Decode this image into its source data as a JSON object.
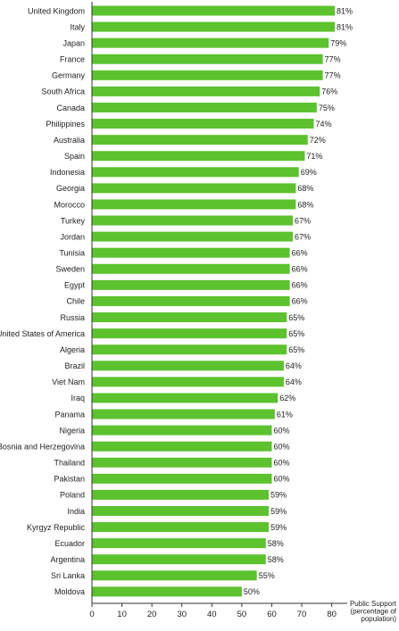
{
  "chart_data": {
    "type": "bar",
    "orientation": "horizontal",
    "categories": [
      "United Kingdom",
      "Italy",
      "Japan",
      "France",
      "Germany",
      "South Africa",
      "Canada",
      "Philippines",
      "Australia",
      "Spain",
      "Indonesia",
      "Georgia",
      "Morocco",
      "Turkey",
      "Jordan",
      "Tunisia",
      "Sweden",
      "Egypt",
      "Chile",
      "Russia",
      "United States of America",
      "Algeria",
      "Brazil",
      "Viet Nam",
      "Iraq",
      "Panama",
      "Nigeria",
      "Bosnia and Herzegovina",
      "Thailand",
      "Pakistan",
      "Poland",
      "India",
      "Kyrgyz Republic",
      "Ecuador",
      "Argentina",
      "Sri Lanka",
      "Moldova"
    ],
    "values": [
      81,
      81,
      79,
      77,
      77,
      76,
      75,
      74,
      72,
      71,
      69,
      68,
      68,
      67,
      67,
      66,
      66,
      66,
      66,
      65,
      65,
      65,
      64,
      64,
      62,
      61,
      60,
      60,
      60,
      60,
      59,
      59,
      59,
      58,
      58,
      55,
      50
    ],
    "value_labels": [
      "81%",
      "81%",
      "79%",
      "77%",
      "77%",
      "76%",
      "75%",
      "74%",
      "72%",
      "71%",
      "69%",
      "68%",
      "68%",
      "67%",
      "67%",
      "66%",
      "66%",
      "66%",
      "66%",
      "65%",
      "65%",
      "65%",
      "64%",
      "64%",
      "62%",
      "61%",
      "60%",
      "60%",
      "60%",
      "60%",
      "59%",
      "59%",
      "59%",
      "58%",
      "58%",
      "55%",
      "50%"
    ],
    "xlabel_lines": [
      "Public Support",
      "(percentage of",
      "population)"
    ],
    "xlim": [
      0,
      85
    ],
    "xticks": [
      0,
      10,
      20,
      30,
      40,
      50,
      60,
      70,
      80
    ],
    "grid": false,
    "bar_color": "#5cc22e"
  }
}
